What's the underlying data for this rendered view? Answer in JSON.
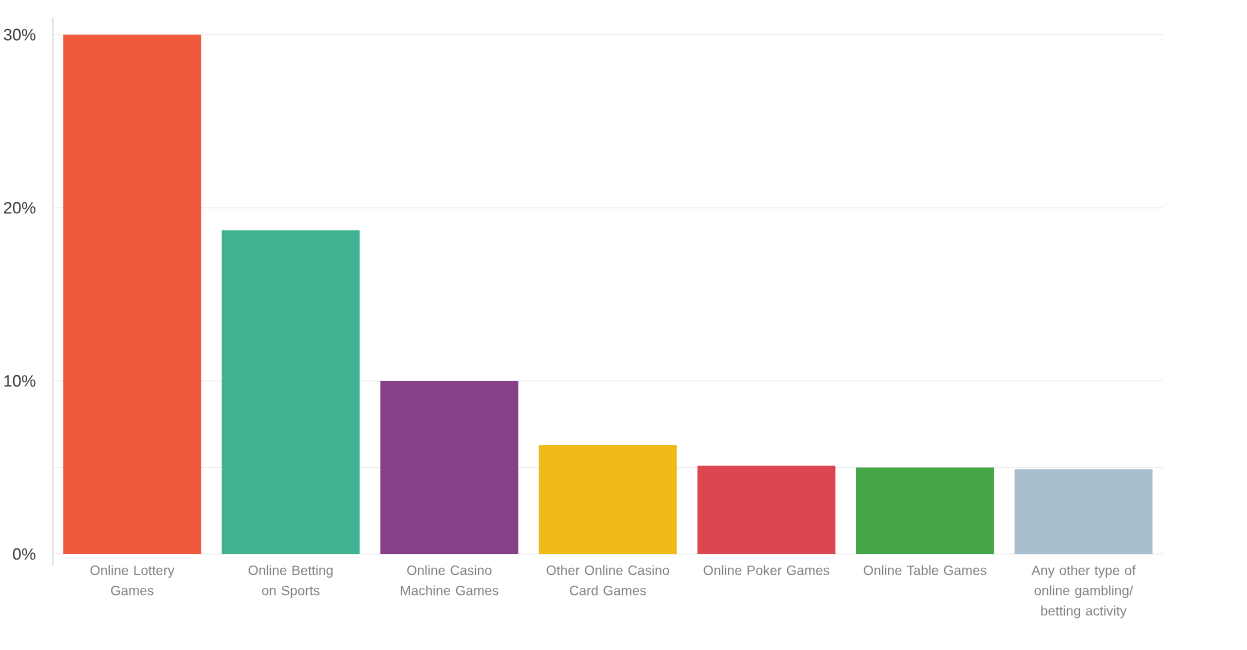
{
  "chart_data": {
    "type": "bar",
    "categories": [
      "Online Lottery Games",
      "Online Betting on Sports",
      "Online Casino Machine Games",
      "Other Online Casino Card Games",
      "Online Poker Games",
      "Online Table Games",
      "Any other type of online gambling/ betting activity"
    ],
    "values": [
      30,
      18.7,
      10,
      6.3,
      5.1,
      5.0,
      4.9
    ],
    "colors": [
      "#f05a3c",
      "#3fb391",
      "#873f87",
      "#f0bb1a",
      "#dc4650",
      "#44a647",
      "#a8bfcf"
    ],
    "ylim": [
      0,
      31
    ],
    "yticks": [
      {
        "value": 0,
        "label": "0%"
      },
      {
        "value": 10,
        "label": "10%"
      },
      {
        "value": 20,
        "label": "20%"
      },
      {
        "value": 30,
        "label": "30%"
      }
    ],
    "ref_lines": [
      {
        "axis": "y",
        "value": 5,
        "color": "#ebebeb"
      }
    ],
    "grid": "y"
  }
}
